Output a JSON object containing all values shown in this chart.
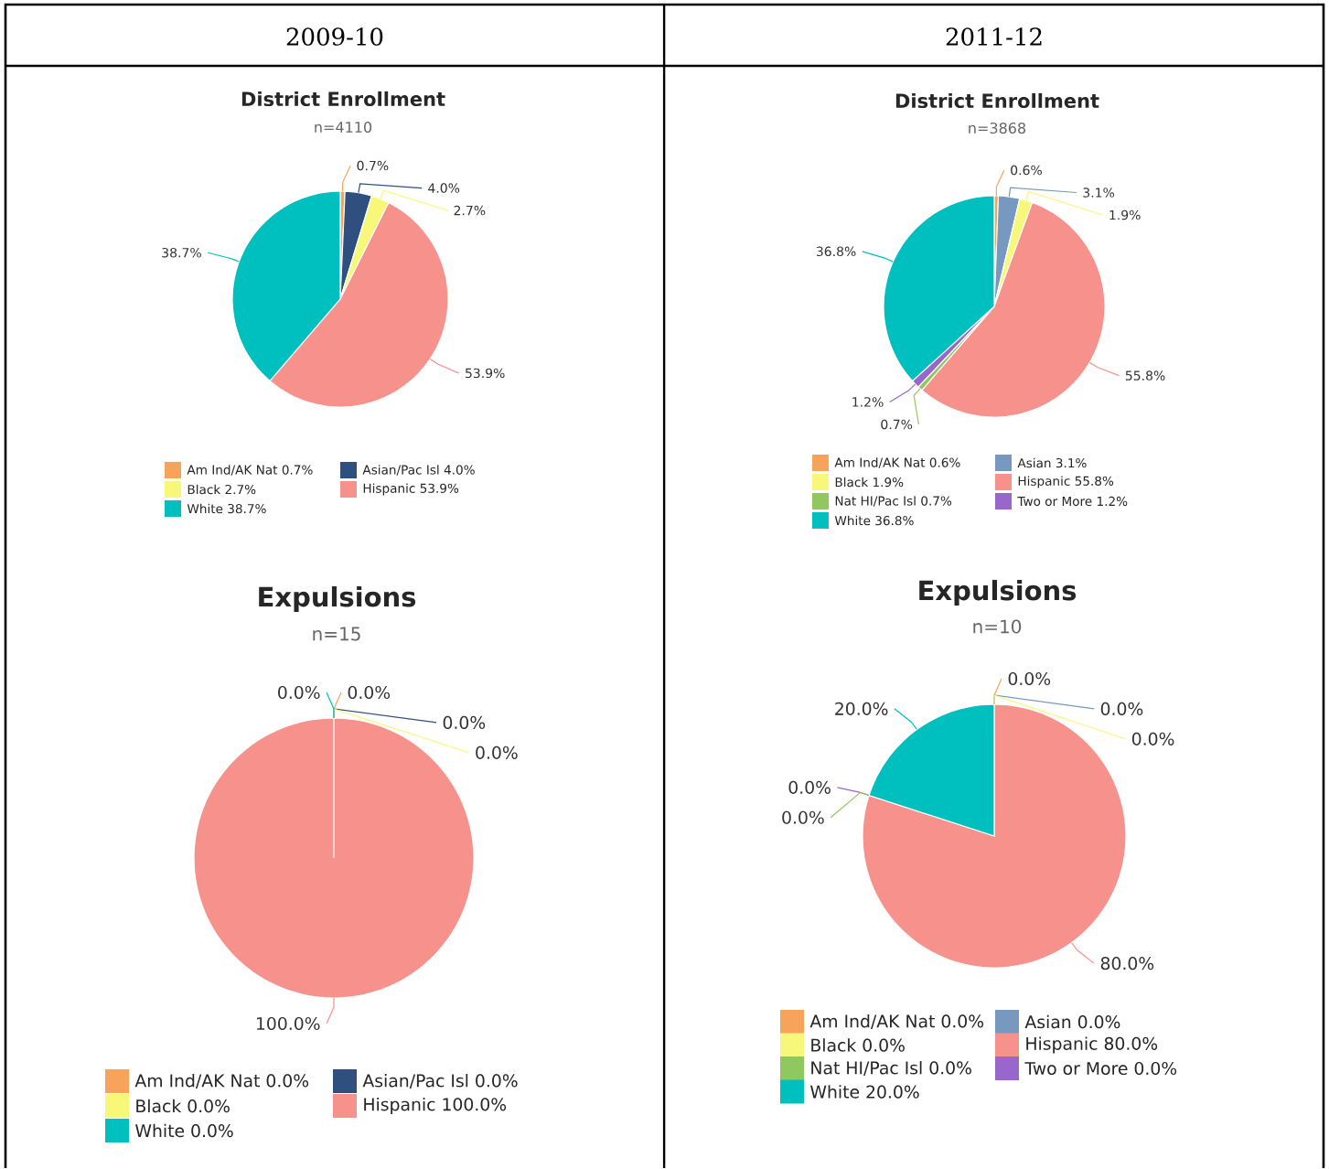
{
  "chart_data": [
    {
      "type": "pie",
      "title": "District Enrollment",
      "subtitle": "n=4110",
      "annotations": [
        "2009-10"
      ],
      "legend": "bottom",
      "categories": [
        "Am Ind/AK Nat 0.7%",
        "Asian/Pac Isl 4.0%",
        "Black 2.7%",
        "Hispanic 53.9%",
        "White 38.7%"
      ],
      "values": [
        0.7,
        4.0,
        2.7,
        53.9,
        38.7
      ],
      "value_labels": [
        "0.7%",
        "4.0%",
        "2.7%",
        "53.9%",
        "38.7%"
      ],
      "colors": [
        "#f7a35c",
        "#2f4f7f",
        "#f7f77a",
        "#f7918b",
        "#00bfbf"
      ]
    },
    {
      "type": "pie",
      "title": "District Enrollment",
      "subtitle": "n=3868",
      "annotations": [
        "2011-12"
      ],
      "legend": "bottom",
      "categories": [
        "Am Ind/AK Nat 0.6%",
        "Asian 3.1%",
        "Black 1.9%",
        "Hispanic 55.8%",
        "Nat HI/Pac Isl 0.7%",
        "Two or More 1.2%",
        "White 36.8%"
      ],
      "values": [
        0.6,
        3.1,
        1.9,
        55.8,
        0.7,
        1.2,
        36.8
      ],
      "value_labels": [
        "0.6%",
        "3.1%",
        "1.9%",
        "55.8%",
        "0.7%",
        "1.2%",
        "36.8%"
      ],
      "colors": [
        "#f7a35c",
        "#7798bf",
        "#f7f77a",
        "#f7918b",
        "#90c860",
        "#9966cc",
        "#00bfbf"
      ]
    },
    {
      "type": "pie",
      "title": "Expulsions",
      "subtitle": "n=15",
      "legend": "bottom",
      "categories": [
        "Am Ind/AK Nat 0.0%",
        "Asian/Pac Isl 0.0%",
        "Black 0.0%",
        "Hispanic 100.0%",
        "White 0.0%"
      ],
      "values": [
        0.0,
        0.0,
        0.0,
        100.0,
        0.0
      ],
      "value_labels": [
        "0.0%",
        "0.0%",
        "0.0%",
        "100.0%",
        "0.0%"
      ],
      "colors": [
        "#f7a35c",
        "#2f4f7f",
        "#f7f77a",
        "#f7918b",
        "#00bfbf"
      ]
    },
    {
      "type": "pie",
      "title": "Expulsions",
      "subtitle": "n=10",
      "legend": "bottom",
      "categories": [
        "Am Ind/AK Nat 0.0%",
        "Asian 0.0%",
        "Black 0.0%",
        "Hispanic 80.0%",
        "Nat HI/Pac Isl 0.0%",
        "Two or More 0.0%",
        "White 20.0%"
      ],
      "values": [
        0.0,
        0.0,
        0.0,
        80.0,
        0.0,
        0.0,
        20.0
      ],
      "value_labels": [
        "0.0%",
        "0.0%",
        "0.0%",
        "80.0%",
        "0.0%",
        "0.0%",
        "20.0%"
      ],
      "colors": [
        "#f7a35c",
        "#7798bf",
        "#f7f77a",
        "#f7918b",
        "#90c860",
        "#9966cc",
        "#00bfbf"
      ]
    }
  ]
}
